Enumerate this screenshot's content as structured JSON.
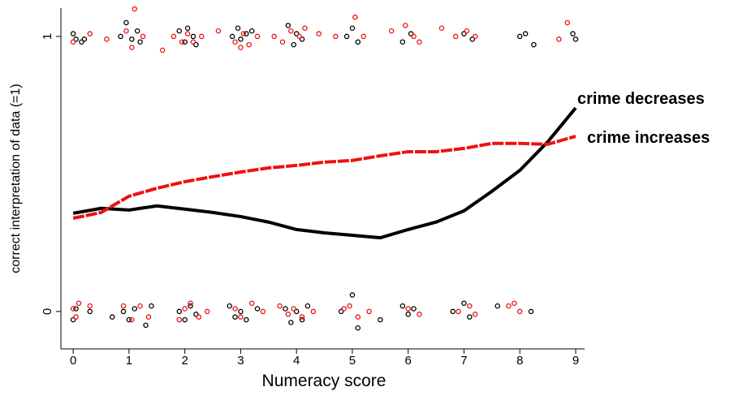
{
  "chart_data": {
    "type": "scatter",
    "xlabel": "Numeracy score",
    "ylabel": "correct interpretation of data (=1)",
    "xlim": [
      -0.22,
      9.16
    ],
    "ylim": [
      -0.136,
      1.103
    ],
    "xticks": [
      0,
      1,
      2,
      3,
      4,
      5,
      6,
      7,
      8,
      9
    ],
    "yticks": [
      0,
      1
    ],
    "lines": [
      {
        "name": "crime decreases",
        "color": "#000000",
        "x": [
          0,
          0.5,
          1,
          1.5,
          2,
          2.5,
          3,
          3.5,
          4,
          4.5,
          5,
          5.5,
          6,
          6.5,
          7,
          7.5,
          8,
          8.5,
          9
        ],
        "values": [
          0.357,
          0.375,
          0.369,
          0.384,
          0.372,
          0.36,
          0.345,
          0.325,
          0.298,
          0.286,
          0.277,
          0.268,
          0.298,
          0.325,
          0.366,
          0.437,
          0.513,
          0.617,
          0.74
        ]
      },
      {
        "name": "crime increases",
        "color": "#ee1111",
        "x": [
          0,
          0.5,
          1,
          1.5,
          2,
          2.5,
          3,
          3.5,
          4,
          4.5,
          5,
          5.5,
          6,
          6.5,
          7,
          7.5,
          8,
          8.5,
          9
        ],
        "values": [
          0.339,
          0.36,
          0.419,
          0.448,
          0.472,
          0.49,
          0.507,
          0.522,
          0.531,
          0.543,
          0.549,
          0.566,
          0.581,
          0.581,
          0.593,
          0.611,
          0.611,
          0.608,
          0.637
        ]
      }
    ],
    "points": [
      {
        "color": "#000000",
        "x": [
          0.0,
          0.05,
          0.15,
          0.2,
          0.85,
          0.95,
          1.05,
          1.15,
          1.2,
          1.9,
          2.0,
          2.05,
          2.15,
          2.2,
          2.85,
          2.95,
          3.0,
          3.1,
          3.2,
          3.85,
          3.95,
          4.0,
          4.1,
          4.9,
          5.0,
          5.1,
          5.9,
          6.05,
          7.0,
          7.15,
          8.0,
          8.1,
          8.25,
          8.95,
          9.0
        ],
        "y": [
          1.01,
          0.99,
          0.98,
          0.99,
          1.0,
          1.05,
          0.99,
          1.02,
          0.98,
          1.02,
          0.98,
          1.03,
          1.0,
          0.97,
          1.0,
          1.03,
          0.99,
          1.01,
          1.02,
          1.04,
          0.97,
          1.01,
          0.99,
          1.0,
          1.03,
          0.98,
          0.98,
          1.01,
          1.01,
          0.99,
          1.0,
          1.01,
          0.97,
          1.01,
          0.99
        ]
      },
      {
        "color": "#000000",
        "x": [
          0.0,
          0.05,
          0.3,
          0.7,
          0.9,
          1.0,
          1.1,
          1.3,
          1.4,
          1.9,
          2.0,
          2.1,
          2.2,
          2.8,
          2.9,
          3.0,
          3.1,
          3.3,
          3.8,
          3.9,
          4.0,
          4.1,
          4.2,
          4.8,
          5.0,
          5.1,
          5.5,
          5.9,
          6.0,
          6.1,
          6.8,
          7.0,
          7.1,
          7.6,
          8.2
        ],
        "y": [
          -0.03,
          0.01,
          0.0,
          -0.02,
          0.0,
          -0.03,
          0.01,
          -0.05,
          0.02,
          0.0,
          -0.03,
          0.02,
          -0.01,
          0.02,
          -0.02,
          0.0,
          -0.03,
          0.01,
          0.01,
          -0.04,
          0.0,
          -0.03,
          0.02,
          0.0,
          0.06,
          -0.06,
          -0.03,
          0.02,
          -0.01,
          0.01,
          0.0,
          0.03,
          -0.02,
          0.02,
          0.0
        ]
      },
      {
        "color": "#ee1111",
        "x": [
          0.0,
          0.3,
          0.6,
          0.95,
          1.05,
          1.1,
          1.25,
          1.6,
          1.8,
          1.95,
          2.05,
          2.15,
          2.3,
          2.6,
          2.9,
          3.0,
          3.05,
          3.15,
          3.3,
          3.6,
          3.75,
          3.9,
          4.05,
          4.15,
          4.4,
          4.7,
          5.05,
          5.2,
          5.7,
          5.95,
          6.1,
          6.2,
          6.6,
          6.85,
          7.05,
          7.2,
          8.7,
          8.85
        ],
        "y": [
          0.98,
          1.01,
          0.99,
          1.02,
          0.96,
          1.1,
          1.0,
          0.95,
          1.0,
          0.98,
          1.01,
          0.98,
          1.0,
          1.02,
          0.98,
          0.96,
          1.01,
          0.97,
          1.0,
          1.0,
          0.98,
          1.02,
          1.0,
          1.03,
          1.01,
          1.0,
          1.07,
          1.0,
          1.02,
          1.04,
          1.0,
          0.98,
          1.03,
          1.0,
          1.02,
          1.0,
          0.99,
          1.05
        ]
      },
      {
        "color": "#ee1111",
        "x": [
          0.0,
          0.05,
          0.1,
          0.3,
          0.9,
          1.05,
          1.2,
          1.35,
          1.9,
          2.0,
          2.1,
          2.25,
          2.4,
          2.9,
          3.0,
          3.2,
          3.4,
          3.7,
          3.85,
          3.95,
          4.1,
          4.3,
          4.85,
          4.95,
          5.1,
          5.3,
          6.0,
          6.2,
          6.9,
          7.1,
          7.2,
          7.8,
          7.9,
          8.0
        ],
        "y": [
          0.01,
          -0.02,
          0.03,
          0.02,
          0.02,
          -0.03,
          0.02,
          -0.02,
          -0.03,
          0.01,
          0.03,
          -0.02,
          0.0,
          0.01,
          -0.02,
          0.03,
          0.0,
          0.02,
          -0.01,
          0.01,
          -0.02,
          0.0,
          0.01,
          0.02,
          -0.02,
          0.0,
          0.01,
          -0.01,
          0.0,
          0.02,
          -0.01,
          0.02,
          0.03,
          0.0
        ]
      }
    ]
  }
}
